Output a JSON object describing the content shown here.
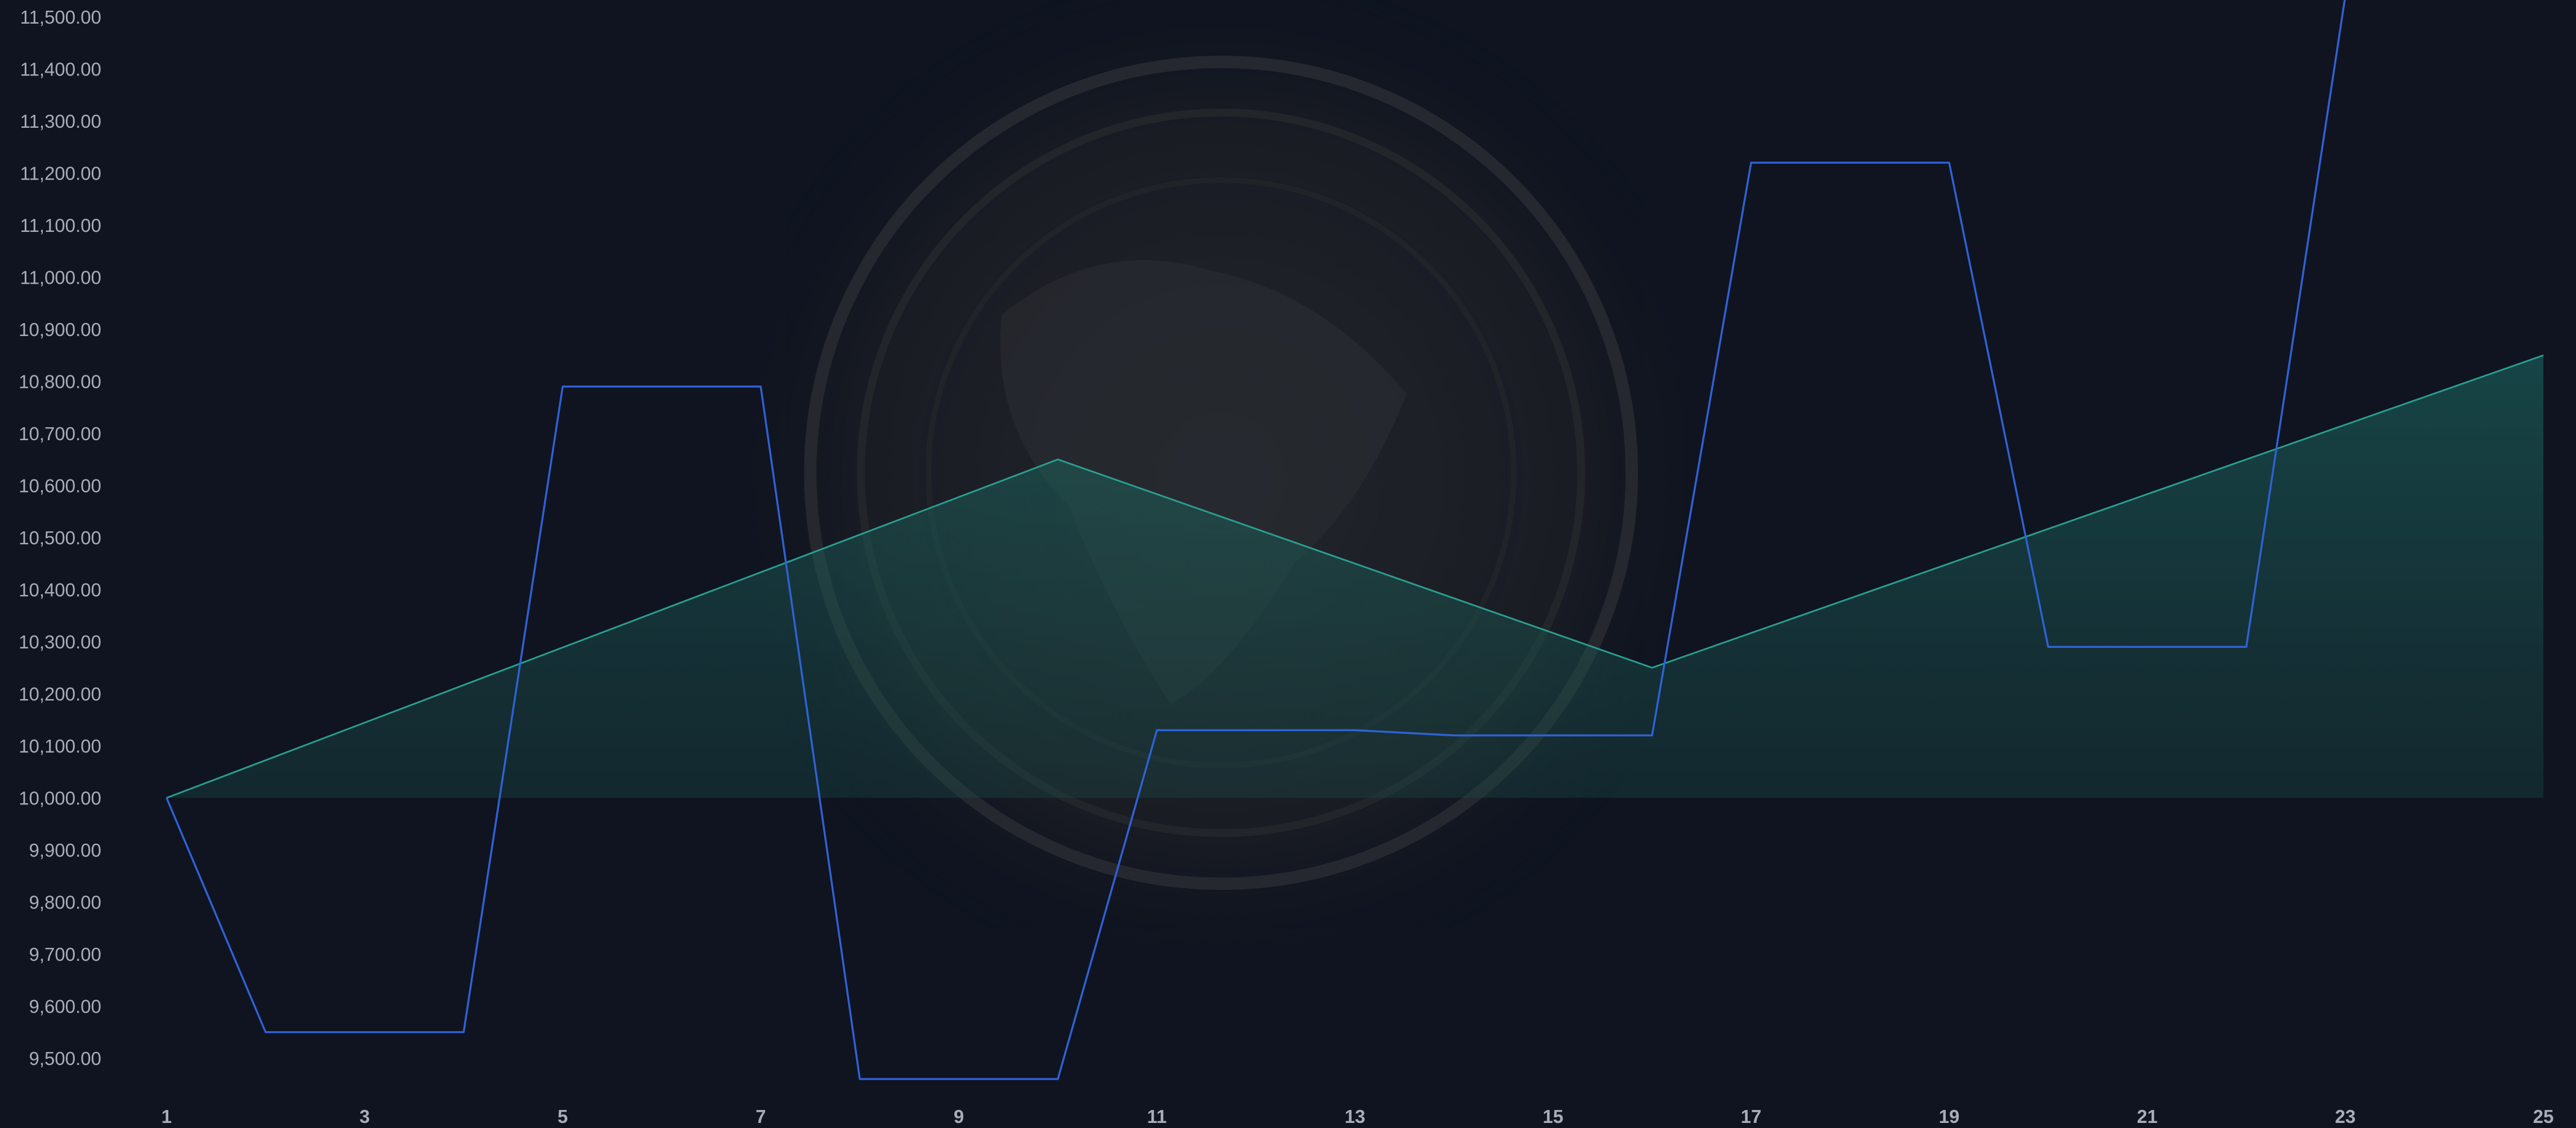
{
  "chart_data": {
    "type": "line",
    "title": "",
    "xlabel": "",
    "ylabel": "",
    "grid": false,
    "legend": "none",
    "x_ticks": [
      "1",
      "3",
      "5",
      "7",
      "9",
      "11",
      "13",
      "15",
      "17",
      "19",
      "21",
      "23",
      "25"
    ],
    "y_ticks": [
      "9,500.00",
      "9,600.00",
      "9,700.00",
      "9,800.00",
      "9,900.00",
      "10,000.00",
      "10,100.00",
      "10,200.00",
      "10,300.00",
      "10,400.00",
      "10,500.00",
      "10,600.00",
      "10,700.00",
      "10,800.00",
      "10,900.00",
      "11,000.00",
      "11,100.00",
      "11,200.00",
      "11,300.00",
      "11,400.00",
      "11,500.00"
    ],
    "ylim": [
      9450,
      11530
    ],
    "xlim": [
      1,
      25
    ],
    "baseline": 10000,
    "series": [
      {
        "kind": "line",
        "color": "#2f62d6",
        "x": [
          1,
          2,
          3,
          4,
          5,
          6,
          7,
          8,
          9,
          10,
          11,
          12,
          13,
          14,
          15,
          16,
          17,
          18,
          19,
          20,
          21,
          22,
          23,
          24,
          25
        ],
        "values": [
          10000,
          9550,
          9550,
          9550,
          10790,
          10790,
          10790,
          9460,
          9460,
          9460,
          10130,
          10130,
          10130,
          10120,
          10120,
          10120,
          11220,
          11220,
          11220,
          10290,
          10290,
          10290,
          11540,
          11540,
          11540
        ]
      },
      {
        "kind": "area",
        "color": "#2a9d8f",
        "x": [
          1,
          10,
          16,
          25
        ],
        "values": [
          10000,
          10650,
          10250,
          10850
        ]
      }
    ]
  }
}
